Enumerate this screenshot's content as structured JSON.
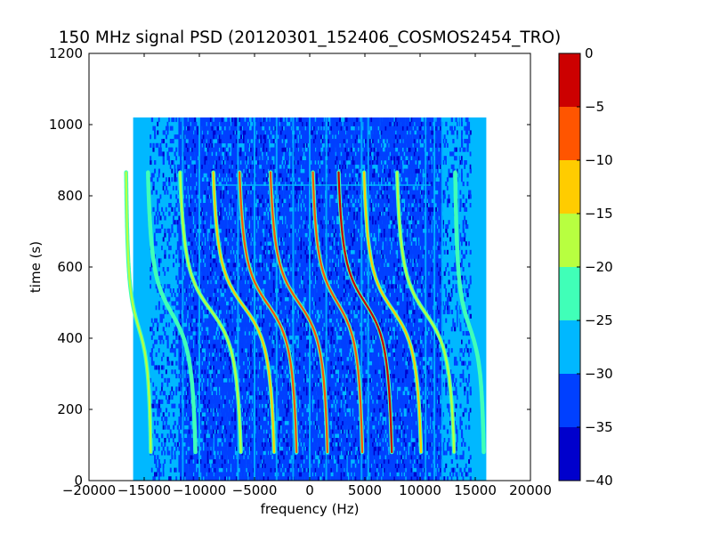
{
  "chart_data": {
    "type": "heatmap",
    "title": "150 MHz signal PSD (20120301_152406_COSMOS2454_TRO)",
    "xlabel": "frequency (Hz)",
    "ylabel": "time (s)",
    "xlim": [
      -20000,
      20000
    ],
    "ylim": [
      0,
      1200
    ],
    "xticks": [
      -20000,
      -15000,
      -10000,
      -5000,
      0,
      5000,
      10000,
      15000,
      20000
    ],
    "yticks": [
      0,
      200,
      400,
      600,
      800,
      1000,
      1200
    ],
    "x_tick_labels": [
      "−20000",
      "−15000",
      "−10000",
      "−5000",
      "0",
      "5000",
      "10000",
      "15000",
      "20000"
    ],
    "y_tick_labels": [
      "0",
      "200",
      "400",
      "600",
      "800",
      "1000",
      "1200"
    ],
    "data_extent": {
      "x": [
        -16000,
        16000
      ],
      "y": [
        0,
        1020
      ]
    },
    "colorbar": {
      "levels": [
        -40,
        -35,
        -30,
        -25,
        -20,
        -15,
        -10,
        -5,
        0
      ],
      "tick_labels": [
        "−40",
        "−35",
        "−30",
        "−25",
        "−20",
        "−15",
        "−10",
        "−5",
        "0"
      ],
      "colors": [
        "#0000cc",
        "#0040ff",
        "#00b8ff",
        "#40ffb8",
        "#b8ff40",
        "#ffcc00",
        "#ff5500",
        "#cc0000"
      ]
    },
    "background_colors": {
      "base": "#00b8ff",
      "noise": "#0040ff"
    },
    "trails": [
      {
        "x_center": -15500,
        "t_mid": 430,
        "amplitude": 1300,
        "level": "#b8ff40"
      },
      {
        "x_center": -12500,
        "t_mid": 470,
        "amplitude": 2500,
        "level": "#40ffb8"
      },
      {
        "x_center": -9000,
        "t_mid": 480,
        "amplitude": 3200,
        "level": "#b8ff40"
      },
      {
        "x_center": -6000,
        "t_mid": 490,
        "amplitude": 3200,
        "level": "#ffcc00"
      },
      {
        "x_center": -3800,
        "t_mid": 495,
        "amplitude": 3000,
        "level": "#ff5500"
      },
      {
        "x_center": -1000,
        "t_mid": 500,
        "amplitude": 3000,
        "level": "#ff5500"
      },
      {
        "x_center": 2500,
        "t_mid": 500,
        "amplitude": 2600,
        "level": "#ff5500"
      },
      {
        "x_center": 5000,
        "t_mid": 500,
        "amplitude": 2800,
        "level": "#cc0000"
      },
      {
        "x_center": 7500,
        "t_mid": 480,
        "amplitude": 3000,
        "level": "#ffcc00"
      },
      {
        "x_center": 10500,
        "t_mid": 470,
        "amplitude": 3000,
        "level": "#b8ff40"
      },
      {
        "x_center": 14500,
        "t_mid": 430,
        "amplitude": 1500,
        "level": "#40ffb8"
      }
    ],
    "vertical_lines": [
      -11500,
      -10000,
      -6500,
      -5000,
      -3000,
      -1500,
      0,
      1500,
      4700,
      5300,
      10500,
      11300,
      12000,
      13500
    ],
    "grid": false
  }
}
